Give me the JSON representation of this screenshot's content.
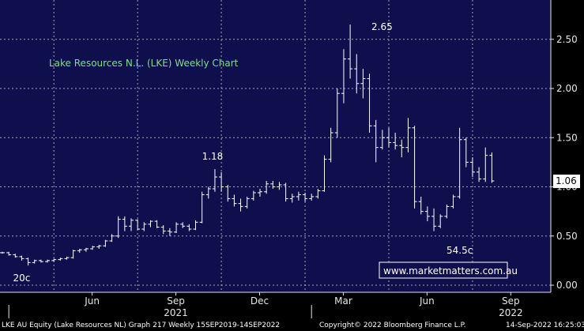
{
  "chart_data": {
    "type": "ohlc",
    "title": "Lake Resources N.L. (LKE) Weekly Chart",
    "colors": {
      "background": "#0f0f4d",
      "grid": "#c8c8c8",
      "bars": "#ffffff",
      "title": "#7ee07e",
      "last_price_box": "#ffffff"
    },
    "grid": true,
    "y_axis": {
      "position": "right",
      "min": 0,
      "max": 2.8,
      "ticks": [
        0.0,
        0.5,
        1.0,
        1.5,
        2.0,
        2.5
      ],
      "tick_labels": [
        "0.00",
        "0.50",
        "1.00",
        "1.50",
        "2.00",
        "2.50"
      ]
    },
    "x_axis": {
      "month_labels": [
        "Jun",
        "Sep",
        "Dec",
        "Mar",
        "Jun",
        "Sep"
      ],
      "month_weeks": [
        14,
        27,
        40,
        53,
        66,
        79
      ],
      "grid_weeks": [
        8,
        21,
        34,
        47,
        60,
        73
      ],
      "year_labels": [
        "2021",
        "2022"
      ],
      "year_label_weeks": [
        27,
        79
      ],
      "year_divider_weeks": [
        1,
        48
      ]
    },
    "annotations": [
      {
        "text": "2.65",
        "week": 56,
        "value": 2.65
      },
      {
        "text": "1.18",
        "week": 33,
        "value": 1.18
      },
      {
        "text": "54.5c",
        "week": 71,
        "value": 0.545
      },
      {
        "text": "20c",
        "week": 3,
        "value": 0.2
      }
    ],
    "last_price": {
      "label": "1.06",
      "value": 1.06
    },
    "watermark": "www.marketmatters.com.au",
    "footer": {
      "left": "LKE AU Equity (Lake Resources NL) Graph 217  Weekly 15SEP2019-14SEP2022",
      "center": "Copyright© 2022 Bloomberg Finance L.P.",
      "right": "14-Sep-2022 16:25:03"
    },
    "ohlc": [
      [
        0.33,
        0.34,
        0.32,
        0.33
      ],
      [
        0.33,
        0.34,
        0.3,
        0.31
      ],
      [
        0.31,
        0.32,
        0.28,
        0.29
      ],
      [
        0.29,
        0.3,
        0.25,
        0.27
      ],
      [
        0.27,
        0.28,
        0.2,
        0.23
      ],
      [
        0.23,
        0.26,
        0.22,
        0.25
      ],
      [
        0.25,
        0.26,
        0.23,
        0.24
      ],
      [
        0.24,
        0.26,
        0.23,
        0.25
      ],
      [
        0.25,
        0.27,
        0.24,
        0.26
      ],
      [
        0.26,
        0.28,
        0.25,
        0.27
      ],
      [
        0.27,
        0.29,
        0.26,
        0.28
      ],
      [
        0.28,
        0.36,
        0.27,
        0.35
      ],
      [
        0.35,
        0.37,
        0.33,
        0.36
      ],
      [
        0.36,
        0.38,
        0.34,
        0.37
      ],
      [
        0.37,
        0.4,
        0.36,
        0.39
      ],
      [
        0.39,
        0.41,
        0.37,
        0.4
      ],
      [
        0.4,
        0.46,
        0.39,
        0.45
      ],
      [
        0.45,
        0.52,
        0.44,
        0.5
      ],
      [
        0.5,
        0.7,
        0.48,
        0.67
      ],
      [
        0.67,
        0.7,
        0.55,
        0.6
      ],
      [
        0.6,
        0.68,
        0.55,
        0.66
      ],
      [
        0.66,
        0.67,
        0.56,
        0.57
      ],
      [
        0.57,
        0.64,
        0.55,
        0.62
      ],
      [
        0.62,
        0.66,
        0.59,
        0.65
      ],
      [
        0.65,
        0.66,
        0.58,
        0.59
      ],
      [
        0.59,
        0.61,
        0.52,
        0.55
      ],
      [
        0.55,
        0.58,
        0.5,
        0.54
      ],
      [
        0.54,
        0.64,
        0.53,
        0.62
      ],
      [
        0.62,
        0.64,
        0.58,
        0.6
      ],
      [
        0.6,
        0.62,
        0.55,
        0.57
      ],
      [
        0.57,
        0.66,
        0.56,
        0.64
      ],
      [
        0.64,
        0.95,
        0.63,
        0.92
      ],
      [
        0.92,
        1.0,
        0.88,
        0.98
      ],
      [
        0.98,
        1.18,
        0.95,
        1.1
      ],
      [
        1.1,
        1.15,
        0.95,
        1.0
      ],
      [
        1.0,
        1.02,
        0.85,
        0.88
      ],
      [
        0.88,
        0.92,
        0.8,
        0.83
      ],
      [
        0.83,
        0.88,
        0.75,
        0.8
      ],
      [
        0.8,
        0.9,
        0.78,
        0.88
      ],
      [
        0.88,
        0.96,
        0.86,
        0.94
      ],
      [
        0.94,
        0.98,
        0.9,
        0.95
      ],
      [
        0.95,
        1.06,
        0.93,
        1.03
      ],
      [
        1.03,
        1.06,
        0.98,
        1.0
      ],
      [
        1.0,
        1.05,
        0.97,
        1.02
      ],
      [
        1.02,
        1.04,
        0.85,
        0.88
      ],
      [
        0.88,
        0.93,
        0.84,
        0.9
      ],
      [
        0.9,
        0.95,
        0.86,
        0.92
      ],
      [
        0.92,
        0.94,
        0.85,
        0.88
      ],
      [
        0.88,
        0.93,
        0.86,
        0.9
      ],
      [
        0.9,
        0.98,
        0.88,
        0.96
      ],
      [
        0.96,
        1.32,
        0.95,
        1.28
      ],
      [
        1.28,
        1.6,
        1.25,
        1.55
      ],
      [
        1.55,
        2.0,
        1.5,
        1.95
      ],
      [
        1.95,
        2.4,
        1.85,
        2.3
      ],
      [
        2.3,
        2.65,
        2.1,
        2.2
      ],
      [
        2.2,
        2.35,
        1.95,
        2.05
      ],
      [
        2.05,
        2.2,
        1.9,
        2.1
      ],
      [
        2.1,
        2.15,
        1.55,
        1.62
      ],
      [
        1.62,
        1.68,
        1.25,
        1.4
      ],
      [
        1.4,
        1.58,
        1.38,
        1.5
      ],
      [
        1.5,
        1.6,
        1.4,
        1.45
      ],
      [
        1.45,
        1.55,
        1.38,
        1.42
      ],
      [
        1.42,
        1.48,
        1.3,
        1.4
      ],
      [
        1.4,
        1.7,
        1.35,
        1.6
      ],
      [
        1.6,
        1.62,
        0.78,
        0.85
      ],
      [
        0.85,
        0.9,
        0.72,
        0.75
      ],
      [
        0.75,
        0.8,
        0.65,
        0.7
      ],
      [
        0.7,
        0.78,
        0.55,
        0.6
      ],
      [
        0.6,
        0.72,
        0.58,
        0.7
      ],
      [
        0.7,
        0.82,
        0.68,
        0.8
      ],
      [
        0.8,
        0.92,
        0.78,
        0.9
      ],
      [
        0.9,
        1.6,
        0.88,
        1.48
      ],
      [
        1.48,
        1.5,
        1.2,
        1.25
      ],
      [
        1.25,
        1.3,
        1.1,
        1.15
      ],
      [
        1.15,
        1.2,
        1.05,
        1.08
      ],
      [
        1.08,
        1.4,
        1.05,
        1.32
      ],
      [
        1.32,
        1.35,
        1.04,
        1.06
      ]
    ]
  }
}
